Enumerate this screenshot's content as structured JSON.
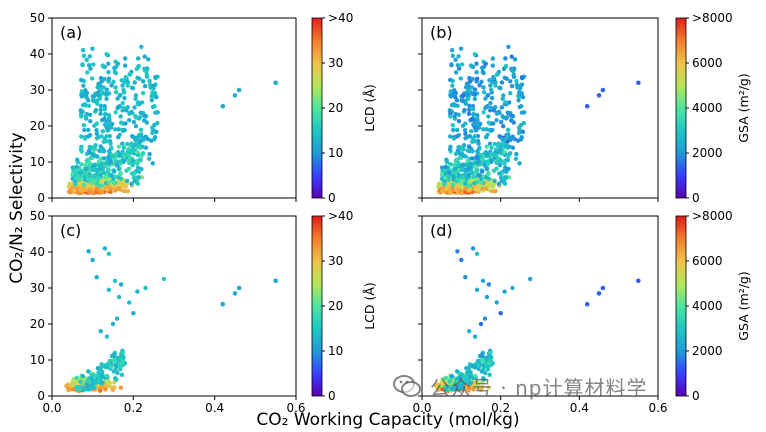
{
  "figure": {
    "ylabel": "CO₂/N₂ Selectivity",
    "xlabel": "CO₂ Working Capacity (mol/kg)"
  },
  "watermark": {
    "text": "公众号 · np计算材料学",
    "icon": "wechat-icon"
  },
  "colormap": [
    "#5a00b0",
    "#3a3cff",
    "#1f9bd6",
    "#1ec9c4",
    "#4fe6a0",
    "#b3e65a",
    "#f0c24b",
    "#f27a2c",
    "#e11b1b"
  ],
  "chart_data": [
    {
      "type": "scatter",
      "panel": "(a)",
      "xlim": [
        0.0,
        0.6
      ],
      "ylim": [
        0,
        50
      ],
      "xticks": [
        "0.0",
        "0.2",
        "0.4",
        "0.6"
      ],
      "yticks": [
        "0",
        "10",
        "20",
        "30",
        "40",
        "50"
      ],
      "colorbar": {
        "label": "LCD (Å)",
        "range": [
          0,
          40
        ],
        "ticks": [
          "0",
          "10",
          "20",
          "30",
          ">40"
        ]
      },
      "color_by": "low-selectivity points high, upper cloud mid",
      "points": "generated",
      "outliers": [
        {
          "x": 0.42,
          "y": 25.5,
          "c": 12
        },
        {
          "x": 0.45,
          "y": 28.5,
          "c": 12
        },
        {
          "x": 0.46,
          "y": 30.0,
          "c": 12
        },
        {
          "x": 0.55,
          "y": 32.0,
          "c": 12
        }
      ]
    },
    {
      "type": "scatter",
      "panel": "(b)",
      "xlim": [
        0.0,
        0.6
      ],
      "ylim": [
        0,
        50
      ],
      "xticks": [
        "0.0",
        "0.2",
        "0.4",
        "0.6"
      ],
      "yticks": [
        "0",
        "10",
        "20",
        "30",
        "40",
        "50"
      ],
      "colorbar": {
        "label": "GSA (m²/g)",
        "range": [
          0,
          8000
        ],
        "ticks": [
          "0",
          "2000",
          "4000",
          "6000",
          ">8000"
        ]
      },
      "points": "generated",
      "outliers": [
        {
          "x": 0.42,
          "y": 25.5,
          "c": 1400
        },
        {
          "x": 0.45,
          "y": 28.5,
          "c": 1400
        },
        {
          "x": 0.46,
          "y": 30.0,
          "c": 1400
        },
        {
          "x": 0.55,
          "y": 32.0,
          "c": 1400
        }
      ]
    },
    {
      "type": "scatter",
      "panel": "(c)",
      "xlim": [
        0.0,
        0.6
      ],
      "ylim": [
        0,
        50
      ],
      "xticks": [
        "0.0",
        "0.2",
        "0.4",
        "0.6"
      ],
      "yticks": [
        "0",
        "10",
        "20",
        "30",
        "40",
        "50"
      ],
      "colorbar": {
        "label": "LCD (Å)",
        "range": [
          0,
          40
        ],
        "ticks": [
          "0",
          "10",
          "20",
          "30",
          ">40"
        ]
      },
      "points": "generated",
      "outliers": [
        {
          "x": 0.42,
          "y": 25.5,
          "c": 12
        },
        {
          "x": 0.45,
          "y": 28.5,
          "c": 12
        },
        {
          "x": 0.46,
          "y": 30.0,
          "c": 12
        },
        {
          "x": 0.55,
          "y": 32.0,
          "c": 12
        }
      ]
    },
    {
      "type": "scatter",
      "panel": "(d)",
      "xlim": [
        0.0,
        0.6
      ],
      "ylim": [
        0,
        50
      ],
      "xticks": [
        "0.0",
        "0.2",
        "0.4",
        "0.6"
      ],
      "yticks": [
        "0",
        "10",
        "20",
        "30",
        "40",
        "50"
      ],
      "colorbar": {
        "label": "GSA (m²/g)",
        "range": [
          0,
          8000
        ],
        "ticks": [
          "0",
          "2000",
          "4000",
          "6000",
          ">8000"
        ]
      },
      "points": "generated",
      "outliers": [
        {
          "x": 0.42,
          "y": 25.5,
          "c": 1400
        },
        {
          "x": 0.45,
          "y": 28.5,
          "c": 1400
        },
        {
          "x": 0.46,
          "y": 30.0,
          "c": 1400
        },
        {
          "x": 0.55,
          "y": 32.0,
          "c": 1400
        }
      ]
    }
  ]
}
